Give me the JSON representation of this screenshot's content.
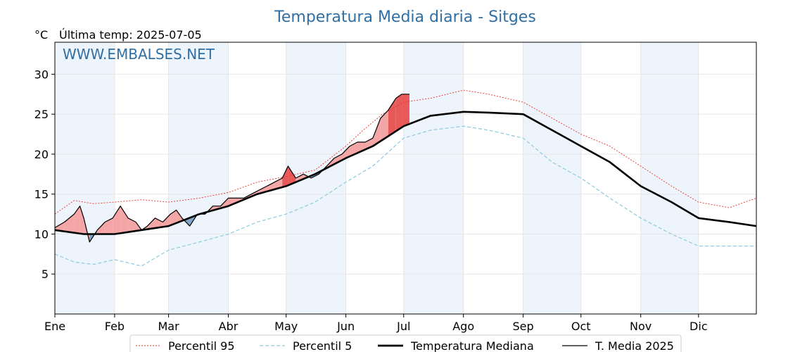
{
  "chart_data": {
    "type": "line",
    "title": "Temperatura Media diaria - Sitges",
    "unit": "°C",
    "last_temp_label": "Última temp: 2025-07-05",
    "watermark": "WWW.EMBALSES.NET",
    "ylim": [
      0,
      34
    ],
    "yticks": [
      5,
      10,
      15,
      20,
      25,
      30
    ],
    "month_labels": [
      "Ene",
      "Feb",
      "Mar",
      "Abr",
      "May",
      "Jun",
      "Jul",
      "Ago",
      "Sep",
      "Oct",
      "Nov",
      "Dic"
    ],
    "month_start_days": [
      0,
      31,
      59,
      90,
      120,
      151,
      181,
      212,
      243,
      273,
      304,
      334
    ],
    "x_range": [
      0,
      364
    ],
    "grid": true,
    "legend_position": "bottom-center",
    "colors": {
      "p95": "#e8322a",
      "p5": "#8ec9de",
      "median": "#000000",
      "actual": "#000000",
      "above_fill": "#f4a5a5",
      "above_fill_strong": "#e85a5a",
      "below_fill": "#7fa6c6",
      "band": "#eef4fb",
      "title": "#2f6fa3"
    },
    "series": [
      {
        "name": "Percentil 95",
        "key": "p95",
        "points": [
          [
            0,
            12.5
          ],
          [
            10,
            14.2
          ],
          [
            20,
            13.8
          ],
          [
            31,
            14.0
          ],
          [
            45,
            14.3
          ],
          [
            59,
            14.0
          ],
          [
            75,
            14.5
          ],
          [
            90,
            15.2
          ],
          [
            105,
            16.5
          ],
          [
            120,
            17.2
          ],
          [
            135,
            18.0
          ],
          [
            151,
            21.0
          ],
          [
            160,
            23.0
          ],
          [
            170,
            25.0
          ],
          [
            181,
            26.5
          ],
          [
            195,
            27.0
          ],
          [
            212,
            28.0
          ],
          [
            225,
            27.5
          ],
          [
            243,
            26.5
          ],
          [
            258,
            24.5
          ],
          [
            273,
            22.5
          ],
          [
            288,
            21.0
          ],
          [
            304,
            18.5
          ],
          [
            320,
            16.0
          ],
          [
            334,
            14.0
          ],
          [
            350,
            13.3
          ],
          [
            364,
            14.5
          ]
        ]
      },
      {
        "name": "Percentil 5",
        "key": "p5",
        "points": [
          [
            0,
            7.5
          ],
          [
            10,
            6.5
          ],
          [
            20,
            6.2
          ],
          [
            31,
            6.8
          ],
          [
            45,
            6.0
          ],
          [
            59,
            8.0
          ],
          [
            75,
            9.0
          ],
          [
            90,
            10.0
          ],
          [
            105,
            11.5
          ],
          [
            120,
            12.5
          ],
          [
            135,
            14.0
          ],
          [
            151,
            16.5
          ],
          [
            165,
            18.5
          ],
          [
            181,
            22.0
          ],
          [
            195,
            23.0
          ],
          [
            212,
            23.5
          ],
          [
            225,
            23.0
          ],
          [
            243,
            22.0
          ],
          [
            258,
            19.0
          ],
          [
            273,
            17.0
          ],
          [
            288,
            14.5
          ],
          [
            304,
            12.0
          ],
          [
            320,
            10.0
          ],
          [
            334,
            8.5
          ],
          [
            350,
            8.5
          ],
          [
            364,
            8.5
          ]
        ]
      },
      {
        "name": "Temperatura Mediana",
        "key": "median",
        "points": [
          [
            0,
            10.5
          ],
          [
            15,
            10.0
          ],
          [
            31,
            10.0
          ],
          [
            45,
            10.5
          ],
          [
            59,
            11.0
          ],
          [
            75,
            12.5
          ],
          [
            90,
            13.5
          ],
          [
            105,
            15.0
          ],
          [
            120,
            16.0
          ],
          [
            135,
            17.5
          ],
          [
            151,
            19.5
          ],
          [
            165,
            21.0
          ],
          [
            181,
            23.5
          ],
          [
            195,
            24.8
          ],
          [
            212,
            25.3
          ],
          [
            225,
            25.2
          ],
          [
            243,
            25.0
          ],
          [
            258,
            23.0
          ],
          [
            273,
            21.0
          ],
          [
            288,
            19.0
          ],
          [
            304,
            16.0
          ],
          [
            320,
            14.0
          ],
          [
            334,
            12.0
          ],
          [
            350,
            11.5
          ],
          [
            364,
            11.0
          ]
        ]
      },
      {
        "name": "T. Media 2025",
        "key": "actual",
        "points": [
          [
            0,
            10.8
          ],
          [
            5,
            11.5
          ],
          [
            10,
            12.5
          ],
          [
            13,
            13.5
          ],
          [
            15,
            12.0
          ],
          [
            18,
            9.0
          ],
          [
            22,
            10.5
          ],
          [
            26,
            11.5
          ],
          [
            30,
            12.0
          ],
          [
            34,
            13.5
          ],
          [
            38,
            12.0
          ],
          [
            42,
            11.5
          ],
          [
            45,
            10.5
          ],
          [
            48,
            11.0
          ],
          [
            52,
            12.0
          ],
          [
            56,
            11.5
          ],
          [
            60,
            12.5
          ],
          [
            63,
            13.0
          ],
          [
            66,
            12.0
          ],
          [
            70,
            11.0
          ],
          [
            74,
            12.5
          ],
          [
            78,
            12.5
          ],
          [
            82,
            13.5
          ],
          [
            86,
            13.5
          ],
          [
            90,
            14.5
          ],
          [
            94,
            14.5
          ],
          [
            98,
            14.5
          ],
          [
            102,
            15.0
          ],
          [
            106,
            15.5
          ],
          [
            110,
            16.0
          ],
          [
            114,
            16.5
          ],
          [
            118,
            17.0
          ],
          [
            121,
            18.5
          ],
          [
            125,
            17.0
          ],
          [
            129,
            17.5
          ],
          [
            133,
            17.0
          ],
          [
            137,
            17.5
          ],
          [
            141,
            18.5
          ],
          [
            145,
            19.5
          ],
          [
            149,
            20.0
          ],
          [
            153,
            21.0
          ],
          [
            157,
            21.5
          ],
          [
            161,
            21.5
          ],
          [
            165,
            22.0
          ],
          [
            169,
            24.5
          ],
          [
            173,
            25.5
          ],
          [
            177,
            27.0
          ],
          [
            180,
            27.5
          ],
          [
            184,
            27.5
          ]
        ]
      }
    ]
  },
  "legend": [
    {
      "label": "Percentil 95",
      "style": "p95"
    },
    {
      "label": "Percentil 5",
      "style": "p5"
    },
    {
      "label": "Temperatura Mediana",
      "style": "median"
    },
    {
      "label": "T. Media 2025",
      "style": "actual"
    }
  ]
}
